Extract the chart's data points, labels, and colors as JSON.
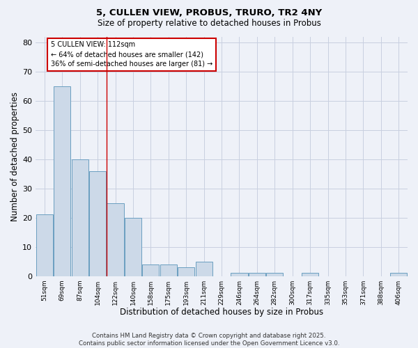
{
  "title1": "5, CULLEN VIEW, PROBUS, TRURO, TR2 4NY",
  "title2": "Size of property relative to detached houses in Probus",
  "xlabel": "Distribution of detached houses by size in Probus",
  "ylabel": "Number of detached properties",
  "categories": [
    "51sqm",
    "69sqm",
    "87sqm",
    "104sqm",
    "122sqm",
    "140sqm",
    "158sqm",
    "175sqm",
    "193sqm",
    "211sqm",
    "229sqm",
    "246sqm",
    "264sqm",
    "282sqm",
    "300sqm",
    "317sqm",
    "335sqm",
    "353sqm",
    "371sqm",
    "388sqm",
    "406sqm"
  ],
  "values": [
    21,
    65,
    40,
    36,
    25,
    20,
    4,
    4,
    3,
    5,
    0,
    1,
    1,
    1,
    0,
    1,
    0,
    0,
    0,
    0,
    1
  ],
  "bar_color": "#ccd9e8",
  "bar_edge_color": "#6a9ec0",
  "background_color": "#eef1f8",
  "grid_color": "#c8cfe0",
  "vline_x_index": 3.5,
  "vline_color": "#cc0000",
  "annotation_text": "5 CULLEN VIEW: 112sqm\n← 64% of detached houses are smaller (142)\n36% of semi-detached houses are larger (81) →",
  "annotation_box_color": "#ffffff",
  "annotation_box_edge": "#cc0000",
  "ylim": [
    0,
    82
  ],
  "yticks": [
    0,
    10,
    20,
    30,
    40,
    50,
    60,
    70,
    80
  ],
  "footer1": "Contains HM Land Registry data © Crown copyright and database right 2025.",
  "footer2": "Contains public sector information licensed under the Open Government Licence v3.0."
}
